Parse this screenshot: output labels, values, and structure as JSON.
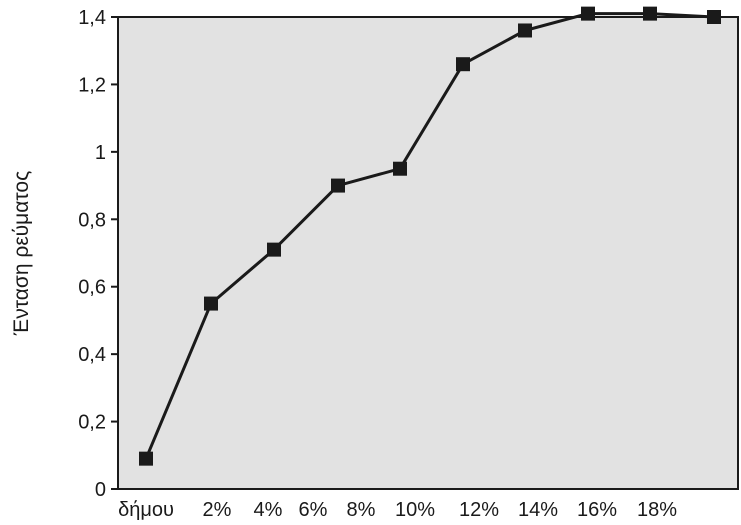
{
  "chart_data": {
    "type": "line",
    "title": "",
    "xlabel": "",
    "ylabel": "Ένταση ρεύματος",
    "ylim": [
      0,
      1.4
    ],
    "y_ticks": [
      0,
      0.2,
      0.4,
      0.6,
      0.8,
      1,
      1.2,
      1.4
    ],
    "y_tick_labels": [
      "0",
      "0,2",
      "0,4",
      "0,6",
      "0,8",
      "1",
      "1,2",
      "1,4"
    ],
    "x_tick_labels": [
      "δήμου",
      "2%",
      "4%",
      "6%",
      "8%",
      "10%",
      "12%",
      "14%",
      "16%",
      "18%"
    ],
    "series": [
      {
        "values": [
          0.09,
          0.55,
          0.71,
          0.9,
          0.95,
          1.26,
          1.36,
          1.41,
          1.41,
          1.4
        ]
      }
    ],
    "grid": false,
    "marker": "square",
    "colors": {
      "plot_background": "#e2e2e2",
      "line": "#1a1a1a",
      "marker": "#1a1a1a"
    }
  }
}
